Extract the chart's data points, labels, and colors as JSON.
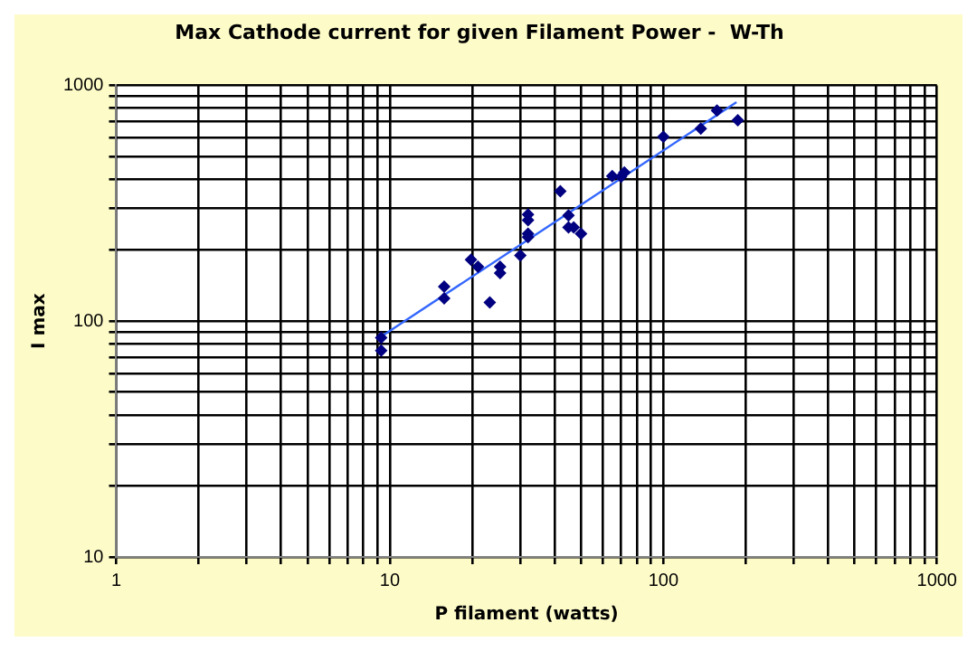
{
  "chart_data": {
    "type": "scatter",
    "title": "Max Cathode current for given Filament Power -  W-Th",
    "xlabel": "P filament (watts)",
    "ylabel": "I max",
    "log": "xy",
    "grid": true,
    "legend": false,
    "marker": "diamond",
    "xlim": [
      1,
      1000
    ],
    "ylim": [
      10,
      1000
    ],
    "xticks": [
      1,
      {
        "value": 2,
        "label": null
      },
      {
        "value": 3,
        "label": null
      },
      {
        "value": 4,
        "label": null
      },
      {
        "value": 5,
        "label": null
      },
      {
        "value": 6,
        "label": null
      },
      {
        "value": 7,
        "label": null
      },
      {
        "value": 8,
        "label": null
      },
      {
        "value": 9,
        "label": null
      },
      10,
      {
        "value": 20,
        "label": null
      },
      {
        "value": 30,
        "label": null
      },
      {
        "value": 40,
        "label": null
      },
      {
        "value": 50,
        "label": null
      },
      {
        "value": 60,
        "label": null
      },
      {
        "value": 70,
        "label": null
      },
      {
        "value": 80,
        "label": null
      },
      {
        "value": 90,
        "label": null
      },
      100,
      {
        "value": 200,
        "label": null
      },
      {
        "value": 300,
        "label": null
      },
      {
        "value": 400,
        "label": null
      },
      {
        "value": 500,
        "label": null
      },
      {
        "value": 600,
        "label": null
      },
      {
        "value": 700,
        "label": null
      },
      {
        "value": 800,
        "label": null
      },
      {
        "value": 900,
        "label": null
      },
      1000
    ],
    "yticks": [
      10,
      {
        "value": 20,
        "label": null
      },
      {
        "value": 30,
        "label": null
      },
      {
        "value": 40,
        "label": null
      },
      {
        "value": 50,
        "label": null
      },
      {
        "value": 60,
        "label": null
      },
      {
        "value": 70,
        "label": null
      },
      {
        "value": 80,
        "label": null
      },
      {
        "value": 90,
        "label": null
      },
      100,
      {
        "value": 200,
        "label": null
      },
      {
        "value": 300,
        "label": null
      },
      {
        "value": 400,
        "label": null
      },
      {
        "value": 500,
        "label": null
      },
      {
        "value": 600,
        "label": null
      },
      {
        "value": 700,
        "label": null
      },
      {
        "value": 800,
        "label": null
      },
      {
        "value": 900,
        "label": null
      },
      1000
    ],
    "series": [
      {
        "color": "#000080",
        "x": [
          9.3,
          9.3,
          15.8,
          15.8,
          19.8,
          21,
          23.2,
          25.3,
          25.3,
          30,
          32,
          32,
          32,
          32,
          42,
          45,
          45,
          47,
          50,
          65,
          70,
          72,
          100,
          137,
          157,
          187
        ],
        "values": [
          85,
          75,
          140,
          125,
          182,
          170,
          120,
          170,
          160,
          190,
          283,
          268,
          235,
          227,
          356,
          281,
          250,
          250,
          235,
          412,
          410,
          427,
          605,
          656,
          782,
          711
        ]
      },
      {
        "type": "line",
        "marker": "none",
        "color": "#3366ff",
        "x": [
          9.3,
          185
        ],
        "values": [
          86,
          848
        ]
      }
    ]
  }
}
